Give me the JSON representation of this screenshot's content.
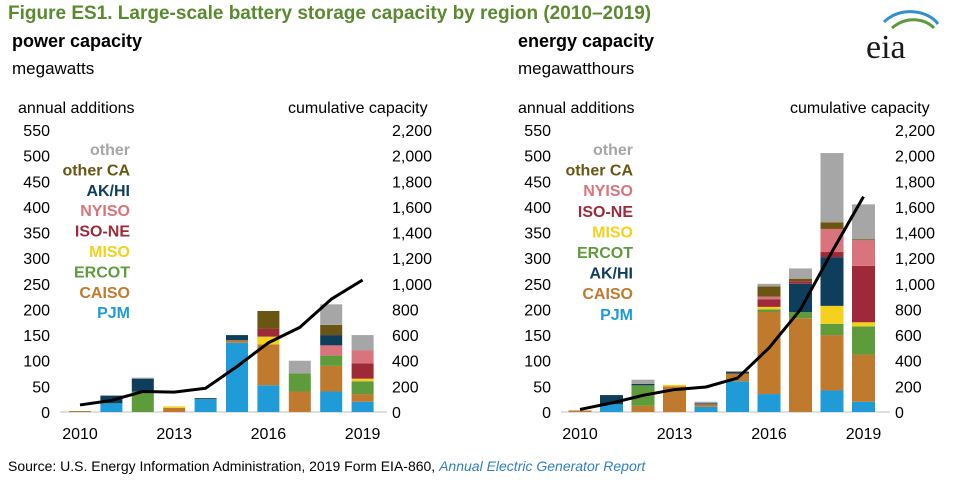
{
  "figure_title": "Figure ES1. Large-scale battery storage capacity by region (2010–2019)",
  "logo_text": "eia",
  "source": {
    "text": "Source: U.S. Energy Information Administration, 2019 Form EIA-860, ",
    "link_text": "Annual Electric Generator Report"
  },
  "colors": {
    "PJM": "#1f9bd7",
    "CAISO": "#c07a2e",
    "ERCOT": "#5e9b3a",
    "MISO": "#f5d01d",
    "ISO-NE": "#9e2a39",
    "NYISO": "#d9737c",
    "AK/HI": "#0f3d5c",
    "other CA": "#6b5513",
    "other": "#a6a6a6",
    "cumulative": "#000000",
    "title": "#5a8a2f"
  },
  "chart_data": [
    {
      "type": "bar",
      "stacked": true,
      "title": "power capacity",
      "subtitle": "megawatts",
      "left_axis_label": "annual additions",
      "right_axis_label": "cumulative capacity",
      "categories": [
        2010,
        2011,
        2012,
        2013,
        2014,
        2015,
        2016,
        2017,
        2018,
        2019
      ],
      "x_tick_labels": [
        "2010",
        "2013",
        "2016",
        "2019"
      ],
      "ylim_left": [
        0,
        550
      ],
      "ylim_right": [
        0,
        2200
      ],
      "y_ticks_left": [
        "0",
        "50",
        "100",
        "150",
        "200",
        "250",
        "300",
        "350",
        "400",
        "450",
        "500",
        "550"
      ],
      "y_ticks_right": [
        "0",
        "200",
        "400",
        "600",
        "800",
        "1,000",
        "1,200",
        "1,400",
        "1,600",
        "1,800",
        "2,000",
        "2,200"
      ],
      "legend": [
        "other",
        "other CA",
        "AK/HI",
        "NYISO",
        "ISO-NE",
        "MISO",
        "ERCOT",
        "CAISO",
        "PJM"
      ],
      "legend_position": "upper-left",
      "grid": false,
      "series": [
        {
          "name": "PJM",
          "values": [
            0,
            17,
            0,
            0,
            25,
            135,
            52,
            0,
            40,
            20
          ]
        },
        {
          "name": "CAISO",
          "values": [
            2,
            0,
            0,
            8,
            0,
            5,
            80,
            40,
            50,
            15
          ]
        },
        {
          "name": "ERCOT",
          "values": [
            0,
            0,
            40,
            0,
            0,
            0,
            0,
            35,
            20,
            25
          ]
        },
        {
          "name": "MISO",
          "values": [
            0,
            0,
            0,
            3,
            0,
            0,
            15,
            0,
            0,
            5
          ]
        },
        {
          "name": "ISO-NE",
          "values": [
            0,
            0,
            0,
            0,
            0,
            0,
            15,
            0,
            0,
            30
          ]
        },
        {
          "name": "NYISO",
          "values": [
            0,
            0,
            0,
            0,
            0,
            0,
            0,
            0,
            20,
            25
          ]
        },
        {
          "name": "AK/HI",
          "values": [
            0,
            15,
            25,
            0,
            2,
            10,
            0,
            0,
            20,
            0
          ]
        },
        {
          "name": "other CA",
          "values": [
            0,
            0,
            0,
            0,
            0,
            0,
            35,
            0,
            20,
            0
          ]
        },
        {
          "name": "other",
          "values": [
            0,
            0,
            2,
            0,
            0,
            0,
            0,
            25,
            40,
            30
          ]
        }
      ],
      "cumulative": {
        "name": "cumulative capacity",
        "values": [
          55,
          90,
          160,
          155,
          185,
          355,
          540,
          660,
          880,
          1030
        ]
      }
    },
    {
      "type": "bar",
      "stacked": true,
      "title": "energy capacity",
      "subtitle": "megawatthours",
      "left_axis_label": "annual additions",
      "right_axis_label": "cumulative capacity",
      "categories": [
        2010,
        2011,
        2012,
        2013,
        2014,
        2015,
        2016,
        2017,
        2018,
        2019
      ],
      "x_tick_labels": [
        "2010",
        "2013",
        "2016",
        "2019"
      ],
      "ylim_left": [
        0,
        550
      ],
      "ylim_right": [
        0,
        2200
      ],
      "y_ticks_left": [
        "0",
        "50",
        "100",
        "150",
        "200",
        "250",
        "300",
        "350",
        "400",
        "450",
        "500",
        "550"
      ],
      "y_ticks_right": [
        "0",
        "200",
        "400",
        "600",
        "800",
        "1,000",
        "1,200",
        "1,400",
        "1,600",
        "1,800",
        "2,000",
        "2,200"
      ],
      "legend": [
        "other",
        "other CA",
        "NYISO",
        "ISO-NE",
        "MISO",
        "ERCOT",
        "AK/HI",
        "CAISO",
        "PJM"
      ],
      "legend_position": "upper-left",
      "grid": false,
      "series": [
        {
          "name": "PJM",
          "values": [
            0,
            15,
            0,
            0,
            10,
            60,
            35,
            0,
            42,
            20
          ]
        },
        {
          "name": "CAISO",
          "values": [
            3,
            0,
            12,
            50,
            5,
            15,
            160,
            183,
            108,
            92
          ]
        },
        {
          "name": "ERCOT",
          "values": [
            0,
            0,
            40,
            0,
            0,
            0,
            5,
            12,
            22,
            55
          ]
        },
        {
          "name": "MISO",
          "values": [
            0,
            0,
            0,
            3,
            0,
            0,
            5,
            0,
            35,
            8
          ]
        },
        {
          "name": "AK/HI",
          "values": [
            0,
            18,
            3,
            0,
            2,
            3,
            0,
            55,
            95,
            0
          ]
        },
        {
          "name": "ISO-NE",
          "values": [
            0,
            0,
            0,
            0,
            0,
            0,
            15,
            5,
            10,
            110
          ]
        },
        {
          "name": "NYISO",
          "values": [
            0,
            0,
            0,
            0,
            0,
            0,
            5,
            0,
            45,
            50
          ]
        },
        {
          "name": "other CA",
          "values": [
            0,
            0,
            0,
            0,
            0,
            0,
            20,
            5,
            13,
            2
          ]
        },
        {
          "name": "other",
          "values": [
            0,
            0,
            8,
            0,
            3,
            2,
            5,
            20,
            135,
            68
          ]
        }
      ],
      "cumulative": {
        "name": "cumulative capacity",
        "values": [
          20,
          70,
          130,
          175,
          195,
          265,
          500,
          800,
          1250,
          1680
        ]
      }
    }
  ]
}
